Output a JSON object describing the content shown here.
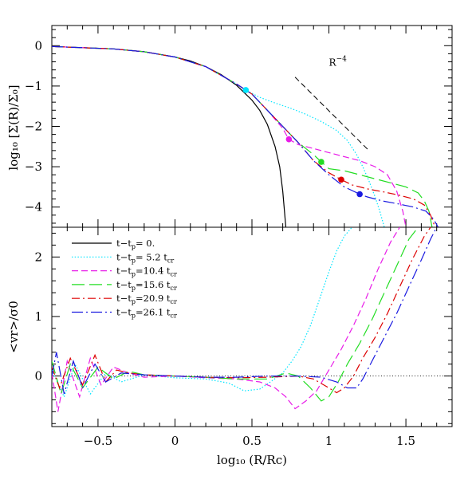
{
  "chart_data": [
    {
      "panel": "top",
      "type": "line",
      "ylabel": "log₁₀ [Σ(R)/Σ₀]",
      "xlim": [
        -0.8,
        1.8
      ],
      "ylim": [
        -4.5,
        0.5
      ],
      "ytick_labels": [
        "0",
        "−1",
        "−2",
        "−3",
        "−4"
      ],
      "yticks": [
        0,
        -1,
        -2,
        -3,
        -4
      ],
      "annotation": {
        "text": "R",
        "sup": "−4"
      },
      "reference_slope": {
        "x": [
          0.78,
          1.26
        ],
        "y": [
          -0.78,
          -2.6
        ],
        "slope": -4
      },
      "series": [
        {
          "id": "t0",
          "color": "#000000",
          "dash": "",
          "x": [
            -0.8,
            -0.6,
            -0.4,
            -0.2,
            0.0,
            0.1,
            0.2,
            0.3,
            0.4,
            0.5,
            0.55,
            0.6,
            0.65,
            0.68,
            0.7,
            0.72
          ],
          "y": [
            -0.02,
            -0.05,
            -0.08,
            -0.15,
            -0.28,
            -0.38,
            -0.52,
            -0.72,
            -0.98,
            -1.35,
            -1.6,
            -1.95,
            -2.5,
            -3.0,
            -3.6,
            -4.5
          ]
        },
        {
          "id": "t5",
          "color": "#00e5ff",
          "dash": "1.5 2.2",
          "x": [
            -0.8,
            -0.6,
            -0.4,
            -0.2,
            0.0,
            0.2,
            0.4,
            0.46,
            0.55,
            0.65,
            0.75,
            0.85,
            0.95,
            1.05,
            1.12,
            1.18,
            1.22,
            1.26,
            1.3,
            1.33,
            1.36
          ],
          "y": [
            -0.02,
            -0.05,
            -0.08,
            -0.15,
            -0.28,
            -0.52,
            -0.95,
            -1.1,
            -1.28,
            -1.42,
            -1.55,
            -1.7,
            -1.88,
            -2.1,
            -2.35,
            -2.7,
            -3.0,
            -3.35,
            -3.75,
            -4.1,
            -4.5
          ]
        },
        {
          "id": "t10",
          "color": "#e81ce8",
          "dash": "8 4",
          "x": [
            -0.8,
            -0.6,
            -0.4,
            -0.2,
            0.0,
            0.2,
            0.4,
            0.5,
            0.6,
            0.7,
            0.74,
            0.8,
            0.9,
            1.0,
            1.1,
            1.2,
            1.3,
            1.38,
            1.44,
            1.48,
            1.5
          ],
          "y": [
            -0.02,
            -0.05,
            -0.08,
            -0.15,
            -0.28,
            -0.52,
            -0.95,
            -1.2,
            -1.6,
            -2.05,
            -2.32,
            -2.45,
            -2.55,
            -2.65,
            -2.75,
            -2.85,
            -3.0,
            -3.2,
            -3.6,
            -4.1,
            -4.5
          ]
        },
        {
          "id": "t15",
          "color": "#22dd22",
          "dash": "16 6",
          "x": [
            -0.8,
            -0.6,
            -0.4,
            -0.2,
            0.0,
            0.2,
            0.4,
            0.5,
            0.6,
            0.7,
            0.8,
            0.9,
            0.95,
            1.0,
            1.1,
            1.2,
            1.3,
            1.4,
            1.5,
            1.58,
            1.62,
            1.65,
            1.67
          ],
          "y": [
            -0.02,
            -0.05,
            -0.08,
            -0.15,
            -0.28,
            -0.52,
            -0.95,
            -1.2,
            -1.6,
            -2.0,
            -2.4,
            -2.7,
            -2.88,
            -3.05,
            -3.1,
            -3.2,
            -3.3,
            -3.4,
            -3.5,
            -3.65,
            -3.85,
            -4.1,
            -4.5
          ]
        },
        {
          "id": "t20",
          "color": "#dd0000",
          "dash": "10 4 2 4",
          "x": [
            -0.8,
            -0.6,
            -0.4,
            -0.2,
            0.0,
            0.2,
            0.4,
            0.5,
            0.6,
            0.7,
            0.8,
            0.9,
            1.0,
            1.08,
            1.15,
            1.25,
            1.35,
            1.45,
            1.55,
            1.62,
            1.66,
            1.69
          ],
          "y": [
            -0.02,
            -0.05,
            -0.08,
            -0.15,
            -0.28,
            -0.52,
            -0.95,
            -1.2,
            -1.6,
            -2.0,
            -2.4,
            -2.85,
            -3.15,
            -3.32,
            -3.45,
            -3.55,
            -3.62,
            -3.7,
            -3.8,
            -3.95,
            -4.2,
            -4.5
          ]
        },
        {
          "id": "t26",
          "color": "#1a1ae0",
          "dash": "14 4 2 4",
          "x": [
            -0.8,
            -0.6,
            -0.4,
            -0.2,
            0.0,
            0.2,
            0.4,
            0.5,
            0.6,
            0.7,
            0.8,
            0.9,
            1.0,
            1.1,
            1.2,
            1.25,
            1.35,
            1.45,
            1.55,
            1.63,
            1.68,
            1.71
          ],
          "y": [
            -0.02,
            -0.05,
            -0.08,
            -0.15,
            -0.28,
            -0.52,
            -0.95,
            -1.2,
            -1.6,
            -2.0,
            -2.4,
            -2.85,
            -3.2,
            -3.5,
            -3.68,
            -3.75,
            -3.85,
            -3.92,
            -4.0,
            -4.1,
            -4.3,
            -4.5
          ]
        }
      ],
      "markers": [
        {
          "x": 0.46,
          "y": -1.1,
          "color": "#00e5ff"
        },
        {
          "x": 0.74,
          "y": -2.32,
          "color": "#e81ce8"
        },
        {
          "x": 0.95,
          "y": -2.88,
          "color": "#22dd22"
        },
        {
          "x": 1.08,
          "y": -3.32,
          "color": "#dd0000"
        },
        {
          "x": 1.2,
          "y": -3.68,
          "color": "#1a1ae0"
        }
      ]
    },
    {
      "panel": "bottom",
      "type": "line",
      "xlabel": "log₁₀ (R/Rc)",
      "ylabel": "<vr>/σ0",
      "xlim": [
        -0.8,
        1.8
      ],
      "ylim": [
        -0.85,
        2.5
      ],
      "xticks": [
        -0.5,
        0,
        0.5,
        1,
        1.5
      ],
      "xtick_labels": [
        "−0.5",
        "0",
        "0.5",
        "1",
        "1.5"
      ],
      "yticks": [
        0,
        1,
        2
      ],
      "ytick_labels": [
        "0",
        "1",
        "2"
      ],
      "zero_line": true,
      "series": [
        {
          "id": "t5",
          "name": "t−t",
          "sub": "p",
          "rest": "= 5.2 t",
          "sub2": "cr",
          "color": "#00e5ff",
          "dash": "1.5 2.2",
          "x": [
            -0.8,
            -0.72,
            -0.65,
            -0.55,
            -0.45,
            -0.35,
            -0.2,
            0.0,
            0.2,
            0.35,
            0.45,
            0.55,
            0.62,
            0.7,
            0.76,
            0.82,
            0.88,
            0.94,
            1.0,
            1.05,
            1.1,
            1.15
          ],
          "y": [
            0.1,
            -0.35,
            0.2,
            -0.3,
            0.05,
            -0.1,
            0.02,
            -0.03,
            -0.05,
            -0.12,
            -0.25,
            -0.22,
            -0.1,
            0.05,
            0.25,
            0.5,
            0.85,
            1.3,
            1.75,
            2.1,
            2.35,
            2.5
          ]
        },
        {
          "id": "t10",
          "name": "t−t",
          "sub": "p",
          "rest": "=10.4 t",
          "sub2": "cr",
          "color": "#e81ce8",
          "dash": "8 4",
          "x": [
            -0.8,
            -0.76,
            -0.7,
            -0.62,
            -0.55,
            -0.48,
            -0.4,
            -0.3,
            -0.2,
            0.0,
            0.2,
            0.4,
            0.55,
            0.65,
            0.72,
            0.78,
            0.85,
            0.92,
            1.0,
            1.08,
            1.16,
            1.24,
            1.32,
            1.4,
            1.46
          ],
          "y": [
            0.05,
            -0.6,
            0.25,
            -0.35,
            0.3,
            -0.15,
            0.15,
            0.05,
            -0.02,
            0.0,
            -0.03,
            -0.05,
            -0.1,
            -0.2,
            -0.35,
            -0.55,
            -0.42,
            -0.25,
            0.1,
            0.45,
            0.85,
            1.3,
            1.8,
            2.25,
            2.5
          ]
        },
        {
          "id": "t15",
          "name": "t−t",
          "sub": "p",
          "rest": "=15.6 t",
          "sub2": "cr",
          "color": "#22dd22",
          "dash": "16 6",
          "x": [
            -0.8,
            -0.74,
            -0.68,
            -0.6,
            -0.5,
            -0.4,
            -0.3,
            -0.2,
            0.0,
            0.2,
            0.4,
            0.6,
            0.72,
            0.8,
            0.88,
            0.95,
            1.0,
            1.06,
            1.12,
            1.2,
            1.28,
            1.36,
            1.44,
            1.52,
            1.58
          ],
          "y": [
            0.25,
            -0.3,
            0.2,
            -0.2,
            0.15,
            -0.05,
            0.08,
            0.02,
            0.0,
            -0.02,
            -0.05,
            -0.05,
            0.05,
            0.0,
            -0.2,
            -0.42,
            -0.35,
            -0.1,
            0.2,
            0.55,
            0.95,
            1.4,
            1.85,
            2.3,
            2.5
          ]
        },
        {
          "id": "t20",
          "name": "t−t",
          "sub": "p",
          "rest": "=20.9 t",
          "sub2": "cr",
          "color": "#dd0000",
          "dash": "10 4 2 4",
          "x": [
            -0.8,
            -0.75,
            -0.68,
            -0.6,
            -0.52,
            -0.45,
            -0.38,
            -0.3,
            -0.2,
            0.0,
            0.2,
            0.4,
            0.6,
            0.8,
            0.9,
            1.0,
            1.05,
            1.1,
            1.16,
            1.22,
            1.3,
            1.38,
            1.46,
            1.54,
            1.62,
            1.66
          ],
          "y": [
            0.15,
            -0.2,
            0.3,
            -0.15,
            0.35,
            -0.1,
            0.1,
            0.05,
            0.02,
            0.0,
            -0.02,
            -0.03,
            -0.02,
            0.0,
            -0.05,
            -0.2,
            -0.28,
            -0.2,
            0.0,
            0.3,
            0.65,
            1.05,
            1.5,
            1.95,
            2.35,
            2.5
          ]
        },
        {
          "id": "t26",
          "name": "t−t",
          "sub": "p",
          "rest": "=26.1 t",
          "sub2": "cr",
          "color": "#1a1ae0",
          "dash": "14 4 2 4",
          "x": [
            -0.8,
            -0.77,
            -0.72,
            -0.66,
            -0.6,
            -0.52,
            -0.45,
            -0.35,
            -0.2,
            0.0,
            0.2,
            0.4,
            0.6,
            0.8,
            0.95,
            1.05,
            1.12,
            1.18,
            1.22,
            1.28,
            1.36,
            1.44,
            1.52,
            1.6,
            1.66,
            1.7
          ],
          "y": [
            0.0,
            0.4,
            -0.3,
            0.25,
            -0.2,
            0.2,
            -0.1,
            0.05,
            0.02,
            0.0,
            -0.02,
            -0.02,
            0.0,
            0.0,
            -0.02,
            -0.1,
            -0.2,
            -0.2,
            -0.05,
            0.25,
            0.65,
            1.05,
            1.5,
            1.95,
            2.3,
            2.5
          ]
        }
      ],
      "legend": {
        "placement": "top-left",
        "entries": [
          {
            "id": "t0",
            "name": "t−t",
            "sub": "p",
            "rest": "= 0.",
            "sub2": "",
            "color": "#000000",
            "dash": ""
          },
          {
            "id": "t5",
            "name": "t−t",
            "sub": "p",
            "rest": "= 5.2 t",
            "sub2": "cr",
            "color": "#00e5ff",
            "dash": "1.5 2.2"
          },
          {
            "id": "t10",
            "name": "t−t",
            "sub": "p",
            "rest": "=10.4 t",
            "sub2": "cr",
            "color": "#e81ce8",
            "dash": "8 4"
          },
          {
            "id": "t15",
            "name": "t−t",
            "sub": "p",
            "rest": "=15.6 t",
            "sub2": "cr",
            "color": "#22dd22",
            "dash": "16 6"
          },
          {
            "id": "t20",
            "name": "t−t",
            "sub": "p",
            "rest": "=20.9 t",
            "sub2": "cr",
            "color": "#dd0000",
            "dash": "10 4 2 4"
          },
          {
            "id": "t26",
            "name": "t−t",
            "sub": "p",
            "rest": "=26.1 t",
            "sub2": "cr",
            "color": "#1a1ae0",
            "dash": "14 4 2 4"
          }
        ]
      }
    }
  ]
}
